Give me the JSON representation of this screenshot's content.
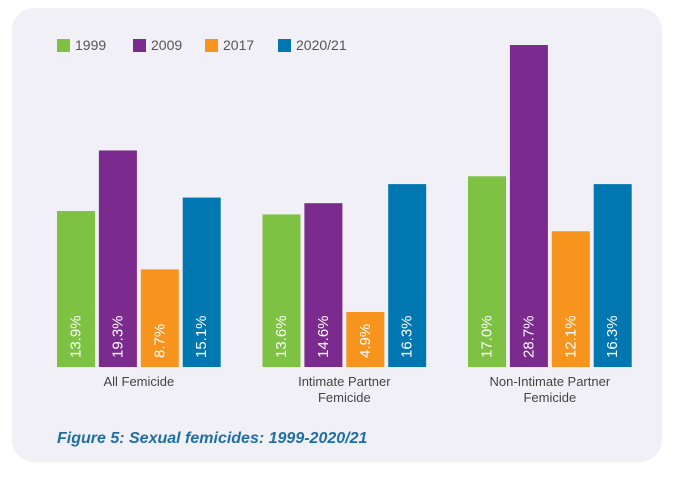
{
  "chart_data": {
    "type": "bar",
    "title": "Figure 5: Sexual femicides: 1999-2020/21",
    "categories": [
      "All Femicide",
      "Intimate Partner Femicide",
      "Non-Intimate Partner Femicide"
    ],
    "series": [
      {
        "name": "1999",
        "color": "#7dc242",
        "values": [
          13.9,
          13.6,
          17.0
        ],
        "value_labels": [
          "13.9%",
          "13.6%",
          "17.0%"
        ]
      },
      {
        "name": "2009",
        "color": "#7b2a8e",
        "values": [
          19.3,
          14.6,
          28.7
        ],
        "value_labels": [
          "19.3%",
          "14.6%",
          "28.7%"
        ]
      },
      {
        "name": "2017",
        "color": "#f7941d",
        "values": [
          8.7,
          4.9,
          12.1
        ],
        "value_labels": [
          "8.7%",
          "4.9%",
          "12.1%"
        ]
      },
      {
        "name": "2020/21",
        "color": "#0077b0",
        "values": [
          15.1,
          16.3,
          16.3
        ],
        "value_labels": [
          "15.1%",
          "16.3%",
          "16.3%"
        ]
      }
    ]
  }
}
